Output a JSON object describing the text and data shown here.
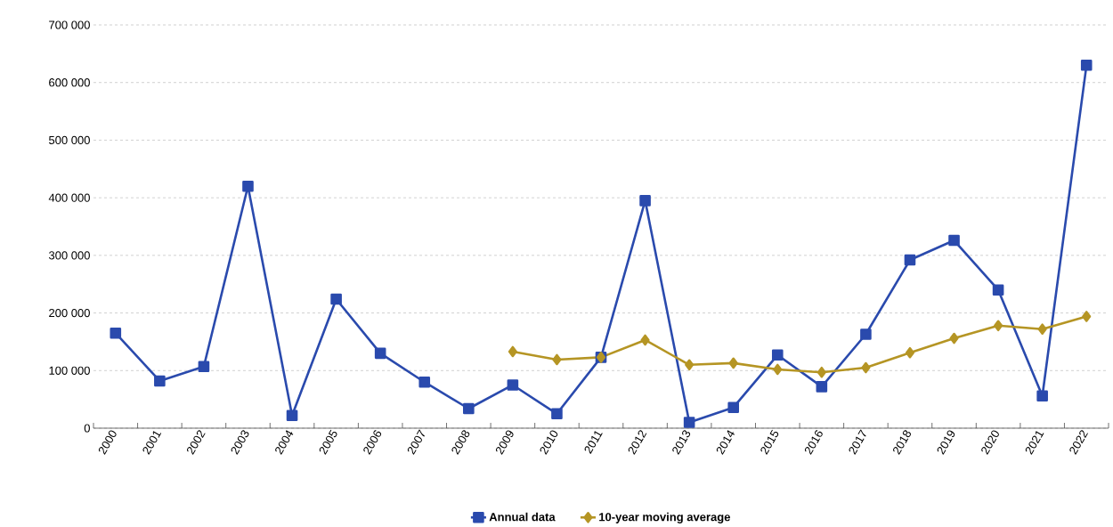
{
  "chart_data": {
    "type": "line",
    "categories": [
      "2000",
      "2001",
      "2002",
      "2003",
      "2004",
      "2005",
      "2006",
      "2007",
      "2008",
      "2009",
      "2010",
      "2011",
      "2012",
      "2013",
      "2014",
      "2015",
      "2016",
      "2017",
      "2018",
      "2019",
      "2020",
      "2021",
      "2022"
    ],
    "series": [
      {
        "name": "Annual data",
        "color": "#2a4aad",
        "marker": "square",
        "values": [
          165000,
          82000,
          107000,
          420000,
          22000,
          224000,
          130000,
          80000,
          34000,
          75000,
          25000,
          123000,
          395000,
          10000,
          36000,
          127000,
          72000,
          163000,
          292000,
          326000,
          240000,
          56000,
          630000
        ]
      },
      {
        "name": "10-year moving average",
        "color": "#b59524",
        "marker": "diamond",
        "values": [
          null,
          null,
          null,
          null,
          null,
          null,
          null,
          null,
          null,
          133000,
          119000,
          123000,
          153000,
          110000,
          113000,
          102000,
          97000,
          105000,
          131000,
          156000,
          178000,
          172000,
          194000
        ]
      }
    ],
    "ylim": [
      0,
      700000
    ],
    "yticks": [
      0,
      {
        "value": 100000,
        "label": "100 000"
      },
      {
        "value": 200000,
        "label": "200 000"
      },
      {
        "value": 300000,
        "label": "300 000"
      },
      {
        "value": 400000,
        "label": "400 000"
      },
      {
        "value": 500000,
        "label": "500 000"
      },
      {
        "value": 600000,
        "label": "600 000"
      },
      {
        "value": 700000,
        "label": "700 000"
      }
    ],
    "grid": "y",
    "legend": "bottom",
    "line_style": "solid"
  }
}
